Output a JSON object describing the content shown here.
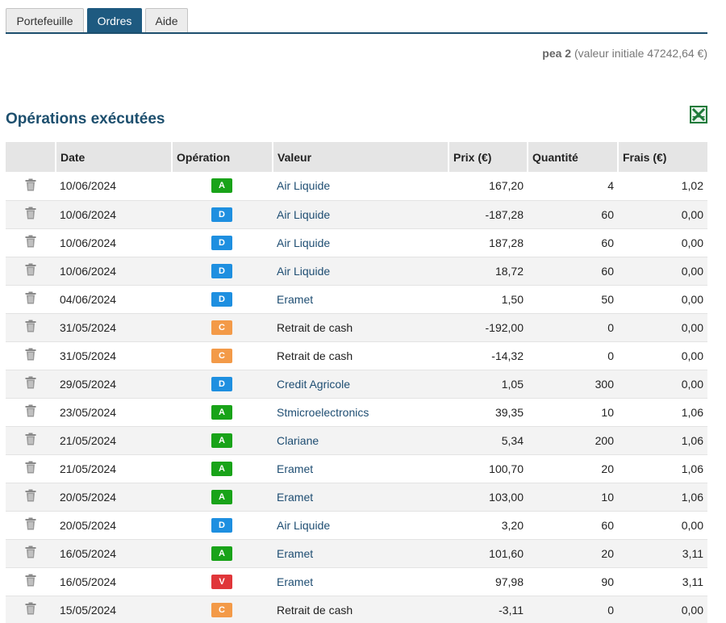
{
  "tabs": [
    {
      "label": "Portefeuille",
      "active": false
    },
    {
      "label": "Ordres",
      "active": true
    },
    {
      "label": "Aide",
      "active": false
    }
  ],
  "portfolio": {
    "name": "pea 2",
    "info": "(valeur initiale 47242,64 €)"
  },
  "section_title": "Opérations exécutées",
  "export_icon": "excel-icon",
  "table": {
    "headers": [
      "Date",
      "Opération",
      "Valeur",
      "Prix (€)",
      "Quantité",
      "Frais (€)"
    ],
    "rows": [
      {
        "date": "10/06/2024",
        "op": "A",
        "valeur": "Air Liquide",
        "link": true,
        "prix": "167,20",
        "quantite": "4",
        "frais": "1,02"
      },
      {
        "date": "10/06/2024",
        "op": "D",
        "valeur": "Air Liquide",
        "link": true,
        "prix": "-187,28",
        "quantite": "60",
        "frais": "0,00"
      },
      {
        "date": "10/06/2024",
        "op": "D",
        "valeur": "Air Liquide",
        "link": true,
        "prix": "187,28",
        "quantite": "60",
        "frais": "0,00"
      },
      {
        "date": "10/06/2024",
        "op": "D",
        "valeur": "Air Liquide",
        "link": true,
        "prix": "18,72",
        "quantite": "60",
        "frais": "0,00"
      },
      {
        "date": "04/06/2024",
        "op": "D",
        "valeur": "Eramet",
        "link": true,
        "prix": "1,50",
        "quantite": "50",
        "frais": "0,00"
      },
      {
        "date": "31/05/2024",
        "op": "C",
        "valeur": "Retrait de cash",
        "link": false,
        "prix": "-192,00",
        "quantite": "0",
        "frais": "0,00"
      },
      {
        "date": "31/05/2024",
        "op": "C",
        "valeur": "Retrait de cash",
        "link": false,
        "prix": "-14,32",
        "quantite": "0",
        "frais": "0,00"
      },
      {
        "date": "29/05/2024",
        "op": "D",
        "valeur": "Credit Agricole",
        "link": true,
        "prix": "1,05",
        "quantite": "300",
        "frais": "0,00"
      },
      {
        "date": "23/05/2024",
        "op": "A",
        "valeur": "Stmicroelectronics",
        "link": true,
        "prix": "39,35",
        "quantite": "10",
        "frais": "1,06"
      },
      {
        "date": "21/05/2024",
        "op": "A",
        "valeur": "Clariane",
        "link": true,
        "prix": "5,34",
        "quantite": "200",
        "frais": "1,06"
      },
      {
        "date": "21/05/2024",
        "op": "A",
        "valeur": "Eramet",
        "link": true,
        "prix": "100,70",
        "quantite": "20",
        "frais": "1,06"
      },
      {
        "date": "20/05/2024",
        "op": "A",
        "valeur": "Eramet",
        "link": true,
        "prix": "103,00",
        "quantite": "10",
        "frais": "1,06"
      },
      {
        "date": "20/05/2024",
        "op": "D",
        "valeur": "Air Liquide",
        "link": true,
        "prix": "3,20",
        "quantite": "60",
        "frais": "0,00"
      },
      {
        "date": "16/05/2024",
        "op": "A",
        "valeur": "Eramet",
        "link": true,
        "prix": "101,60",
        "quantite": "20",
        "frais": "3,11"
      },
      {
        "date": "16/05/2024",
        "op": "V",
        "valeur": "Eramet",
        "link": true,
        "prix": "97,98",
        "quantite": "90",
        "frais": "3,11"
      },
      {
        "date": "15/05/2024",
        "op": "C",
        "valeur": "Retrait de cash",
        "link": false,
        "prix": "-3,11",
        "quantite": "0",
        "frais": "0,00"
      }
    ]
  },
  "colors": {
    "accent": "#1e5a80",
    "title": "#1d4f6e",
    "link": "#1e4d72",
    "badge_A": "#19a319",
    "badge_D": "#1e8fe0",
    "badge_C": "#f39a48",
    "badge_V": "#e0363a"
  }
}
